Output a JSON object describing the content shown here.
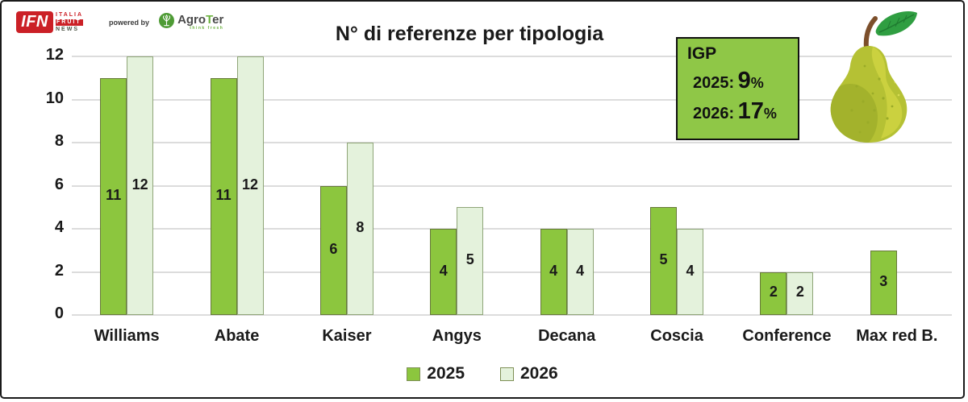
{
  "header": {
    "ifn_logo": {
      "abbr": "IFN",
      "line1": "ITALIA",
      "line2": "FRUIT",
      "line3": "NEWS"
    },
    "powered_by": "powered by",
    "agroter_logo": {
      "name_pre": "Agro",
      "name_t": "T",
      "name_post": "er",
      "tagline": "think fresh"
    }
  },
  "chart_data": {
    "type": "bar",
    "title": "N° di referenze per tipologia",
    "categories": [
      "Williams",
      "Abate",
      "Kaiser",
      "Angys",
      "Decana",
      "Coscia",
      "Conference",
      "Max red B."
    ],
    "series": [
      {
        "name": "2025",
        "color": "#8cc63e",
        "border": "#67793a",
        "values": [
          11,
          11,
          6,
          4,
          4,
          5,
          2,
          3
        ]
      },
      {
        "name": "2026",
        "color": "#e4f2dc",
        "border": "#8fa578",
        "values": [
          12,
          12,
          8,
          5,
          4,
          4,
          2,
          null
        ]
      }
    ],
    "xlabel": "",
    "ylabel": "",
    "ylim": [
      0,
      12
    ],
    "yticks": [
      0,
      2,
      4,
      6,
      8,
      10,
      12
    ],
    "grid": true,
    "data_labels": true,
    "legend_position": "bottom"
  },
  "annotation_box": {
    "title": "IGP",
    "bg": "#8fc747",
    "rows": [
      {
        "label": "2025:",
        "value": "9",
        "suffix": "%"
      },
      {
        "label": "2026:",
        "value": "17",
        "suffix": "%"
      }
    ]
  },
  "colors": {
    "gridline": "#dcdcdc",
    "ifn_red": "#cb2026",
    "agroter_green": "#6cb33f",
    "text": "#1a1a1a",
    "pear_body": "#b5c134",
    "pear_highlight": "#cbd13f",
    "pear_shadow": "#a3b22c",
    "pear_stem": "#7c4f2b",
    "pear_leaf": "#2f9e41"
  }
}
